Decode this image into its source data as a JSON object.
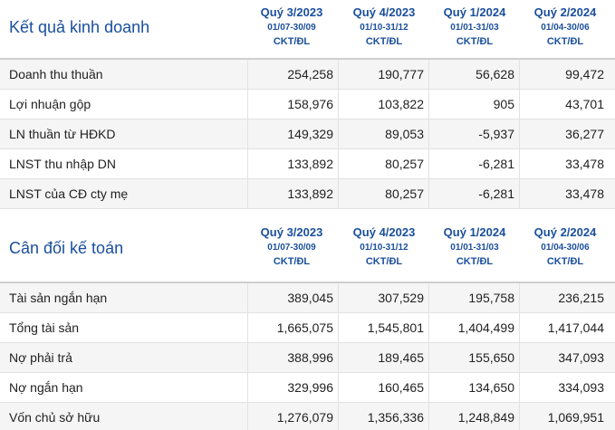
{
  "colors": {
    "heading": "#1a4f9c",
    "row_alt": "#f5f5f5",
    "border": "#e2e2e2"
  },
  "kqkd": {
    "title": "Kết quả kinh doanh",
    "periods": [
      {
        "name": "Quý 3/2023",
        "range": "01/07-30/09",
        "unit": "CKT/ĐL"
      },
      {
        "name": "Quý 4/2023",
        "range": "01/10-31/12",
        "unit": "CKT/ĐL"
      },
      {
        "name": "Quý 1/2024",
        "range": "01/01-31/03",
        "unit": "CKT/ĐL"
      },
      {
        "name": "Quý 2/2024",
        "range": "01/04-30/06",
        "unit": "CKT/ĐL"
      }
    ],
    "rows": [
      {
        "label": "Doanh thu thuần",
        "values": [
          "254,258",
          "190,777",
          "56,628",
          "99,472"
        ]
      },
      {
        "label": "Lợi nhuận gộp",
        "values": [
          "158,976",
          "103,822",
          "905",
          "43,701"
        ]
      },
      {
        "label": "LN thuần từ HĐKD",
        "values": [
          "149,329",
          "89,053",
          "-5,937",
          "36,277"
        ]
      },
      {
        "label": "LNST thu nhập DN",
        "values": [
          "133,892",
          "80,257",
          "-6,281",
          "33,478"
        ]
      },
      {
        "label": "LNST của CĐ cty mẹ",
        "values": [
          "133,892",
          "80,257",
          "-6,281",
          "33,478"
        ]
      }
    ]
  },
  "cdkt": {
    "title": "Cân đối kế toán",
    "periods": [
      {
        "name": "Quý 3/2023",
        "range": "01/07-30/09",
        "unit": "CKT/ĐL"
      },
      {
        "name": "Quý 4/2023",
        "range": "01/10-31/12",
        "unit": "CKT/ĐL"
      },
      {
        "name": "Quý 1/2024",
        "range": "01/01-31/03",
        "unit": "CKT/ĐL"
      },
      {
        "name": "Quý 2/2024",
        "range": "01/04-30/06",
        "unit": "CKT/ĐL"
      }
    ],
    "rows": [
      {
        "label": "Tài sản ngắn hạn",
        "values": [
          "389,045",
          "307,529",
          "195,758",
          "236,215"
        ]
      },
      {
        "label": "Tổng tài sản",
        "values": [
          "1,665,075",
          "1,545,801",
          "1,404,499",
          "1,417,044"
        ]
      },
      {
        "label": "Nợ phải trả",
        "values": [
          "388,996",
          "189,465",
          "155,650",
          "347,093"
        ]
      },
      {
        "label": "Nợ ngắn hạn",
        "values": [
          "329,996",
          "160,465",
          "134,650",
          "334,093"
        ]
      },
      {
        "label": "Vốn chủ sở hữu",
        "values": [
          "1,276,079",
          "1,356,336",
          "1,248,849",
          "1,069,951"
        ]
      }
    ]
  }
}
